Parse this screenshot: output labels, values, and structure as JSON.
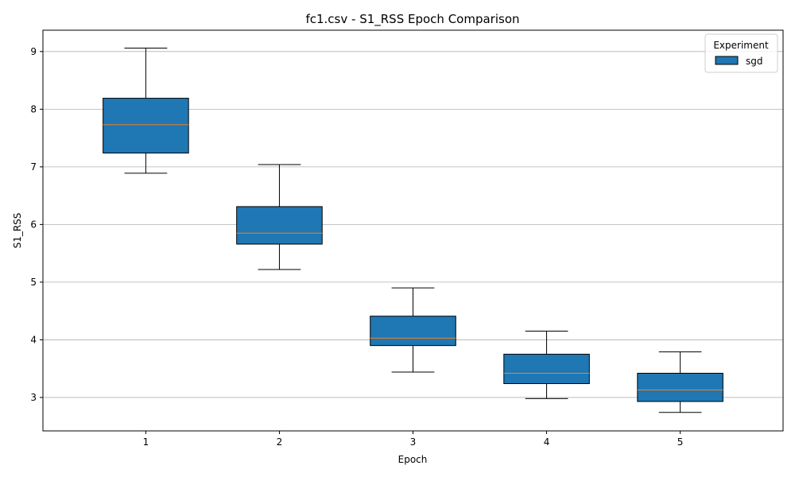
{
  "chart_data": {
    "type": "box",
    "title": "fc1.csv - S1_RSS Epoch Comparison",
    "xlabel": "Epoch",
    "ylabel": "S1_RSS",
    "categories": [
      "1",
      "2",
      "3",
      "4",
      "5"
    ],
    "ylim": [
      2.42,
      9.37
    ],
    "yticks": [
      3,
      4,
      5,
      6,
      7,
      8,
      9
    ],
    "grid": "y",
    "legend": {
      "title": "Experiment",
      "placement": "top-right"
    },
    "series": [
      {
        "name": "sgd",
        "color": "#1f77b4",
        "median_color": "#ff7f0e",
        "boxes": [
          {
            "whisker_low": 6.89,
            "q1": 7.24,
            "median": 7.73,
            "q3": 8.19,
            "whisker_high": 9.06
          },
          {
            "whisker_low": 5.22,
            "q1": 5.66,
            "median": 5.85,
            "q3": 6.31,
            "whisker_high": 7.04
          },
          {
            "whisker_low": 3.44,
            "q1": 3.9,
            "median": 4.03,
            "q3": 4.41,
            "whisker_high": 4.9
          },
          {
            "whisker_low": 2.98,
            "q1": 3.24,
            "median": 3.42,
            "q3": 3.75,
            "whisker_high": 4.15
          },
          {
            "whisker_low": 2.74,
            "q1": 2.93,
            "median": 3.13,
            "q3": 3.42,
            "whisker_high": 3.79
          }
        ]
      }
    ]
  }
}
